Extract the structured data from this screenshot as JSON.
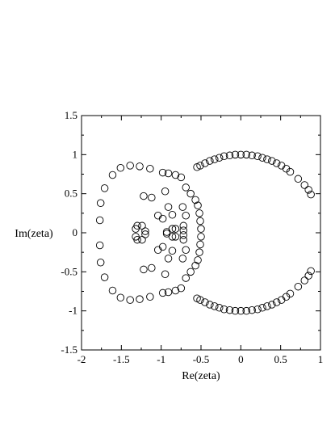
{
  "chart_data": {
    "type": "scatter",
    "title": "",
    "xlabel": "Re(zeta)",
    "ylabel": "Im(zeta)",
    "xlim": [
      -2,
      1
    ],
    "ylim": [
      -1.5,
      1.5
    ],
    "x_ticks": [
      -2,
      -1.5,
      -1,
      -0.5,
      0,
      0.5,
      1
    ],
    "x_tick_labels": [
      "-2",
      "-1.5",
      "-1",
      "-0.5",
      "0",
      "0.5",
      "1"
    ],
    "y_ticks": [
      -1.5,
      -1,
      -0.5,
      0,
      0.5,
      1,
      1.5
    ],
    "y_tick_labels": [
      "-1.5",
      "-1",
      "-0.5",
      "0",
      "0.5",
      "1",
      "1.5"
    ],
    "marker": "open-circle",
    "grid": false,
    "series": [
      {
        "points": [
          [
            -0.55,
            0.84
          ],
          [
            -0.51,
            0.86
          ],
          [
            -0.45,
            0.89
          ],
          [
            -0.39,
            0.92
          ],
          [
            -0.33,
            0.94
          ],
          [
            -0.27,
            0.96
          ],
          [
            -0.21,
            0.98
          ],
          [
            -0.14,
            0.99
          ],
          [
            -0.07,
            1.0
          ],
          [
            0.0,
            1.0
          ],
          [
            0.07,
            1.0
          ],
          [
            0.14,
            0.99
          ],
          [
            0.21,
            0.98
          ],
          [
            0.27,
            0.96
          ],
          [
            0.33,
            0.94
          ],
          [
            0.39,
            0.92
          ],
          [
            0.45,
            0.89
          ],
          [
            0.51,
            0.86
          ],
          [
            0.57,
            0.82
          ],
          [
            0.62,
            0.78
          ],
          [
            0.72,
            0.69
          ],
          [
            0.8,
            0.61
          ],
          [
            0.85,
            0.55
          ],
          [
            0.88,
            0.49
          ],
          [
            -0.55,
            -0.84
          ],
          [
            -0.51,
            -0.86
          ],
          [
            -0.45,
            -0.89
          ],
          [
            -0.39,
            -0.92
          ],
          [
            -0.33,
            -0.94
          ],
          [
            -0.27,
            -0.96
          ],
          [
            -0.21,
            -0.98
          ],
          [
            -0.14,
            -0.99
          ],
          [
            -0.07,
            -1.0
          ],
          [
            0.0,
            -1.0
          ],
          [
            0.07,
            -1.0
          ],
          [
            0.14,
            -0.99
          ],
          [
            0.21,
            -0.98
          ],
          [
            0.27,
            -0.96
          ],
          [
            0.33,
            -0.94
          ],
          [
            0.39,
            -0.92
          ],
          [
            0.45,
            -0.89
          ],
          [
            0.51,
            -0.86
          ],
          [
            0.57,
            -0.82
          ],
          [
            0.62,
            -0.78
          ],
          [
            0.72,
            -0.69
          ],
          [
            0.8,
            -0.61
          ],
          [
            0.85,
            -0.55
          ],
          [
            0.88,
            -0.49
          ],
          [
            -1.76,
            0.38
          ],
          [
            -1.77,
            0.16
          ],
          [
            -1.77,
            -0.16
          ],
          [
            -1.76,
            -0.38
          ],
          [
            -1.71,
            0.57
          ],
          [
            -1.61,
            0.74
          ],
          [
            -1.51,
            0.83
          ],
          [
            -1.39,
            0.86
          ],
          [
            -1.27,
            0.85
          ],
          [
            -1.14,
            0.82
          ],
          [
            -1.71,
            -0.57
          ],
          [
            -1.61,
            -0.74
          ],
          [
            -1.51,
            -0.83
          ],
          [
            -1.39,
            -0.86
          ],
          [
            -1.27,
            -0.85
          ],
          [
            -1.14,
            -0.82
          ],
          [
            -0.98,
            0.77
          ],
          [
            -0.91,
            0.76
          ],
          [
            -0.82,
            0.74
          ],
          [
            -0.75,
            0.71
          ],
          [
            -0.69,
            0.58
          ],
          [
            -0.63,
            0.5
          ],
          [
            -0.98,
            -0.77
          ],
          [
            -0.91,
            -0.76
          ],
          [
            -0.82,
            -0.74
          ],
          [
            -0.75,
            -0.71
          ],
          [
            -0.69,
            -0.58
          ],
          [
            -0.63,
            -0.5
          ],
          [
            -0.57,
            0.42
          ],
          [
            -0.54,
            0.35
          ],
          [
            -0.52,
            0.25
          ],
          [
            -0.51,
            0.15
          ],
          [
            -0.5,
            0.05
          ],
          [
            -0.57,
            -0.42
          ],
          [
            -0.54,
            -0.35
          ],
          [
            -0.52,
            -0.25
          ],
          [
            -0.51,
            -0.15
          ],
          [
            -0.5,
            -0.05
          ],
          [
            -1.22,
            0.47
          ],
          [
            -1.12,
            0.45
          ],
          [
            -0.95,
            0.53
          ],
          [
            -1.22,
            -0.47
          ],
          [
            -1.12,
            -0.45
          ],
          [
            -0.95,
            -0.53
          ],
          [
            -0.91,
            0.33
          ],
          [
            -0.86,
            0.23
          ],
          [
            -0.91,
            -0.33
          ],
          [
            -0.86,
            -0.23
          ],
          [
            -1.32,
            0.05
          ],
          [
            -1.3,
            0.09
          ],
          [
            -1.24,
            0.09
          ],
          [
            -1.32,
            -0.05
          ],
          [
            -1.3,
            -0.09
          ],
          [
            -1.24,
            -0.09
          ],
          [
            -0.73,
            0.33
          ],
          [
            -0.69,
            0.22
          ],
          [
            -0.73,
            -0.33
          ],
          [
            -0.69,
            -0.22
          ],
          [
            -1.04,
            0.22
          ],
          [
            -0.98,
            0.18
          ],
          [
            -1.04,
            -0.22
          ],
          [
            -0.98,
            -0.18
          ],
          [
            -0.86,
            0.05
          ],
          [
            -0.82,
            0.05
          ],
          [
            -0.86,
            -0.05
          ],
          [
            -0.82,
            -0.05
          ],
          [
            -0.72,
            0.09
          ],
          [
            -0.72,
            0.03
          ],
          [
            -0.72,
            -0.03
          ],
          [
            -0.72,
            -0.09
          ],
          [
            -1.2,
            0.02
          ],
          [
            -1.2,
            -0.02
          ],
          [
            -0.93,
            0.01
          ],
          [
            -0.93,
            -0.01
          ]
        ]
      }
    ]
  }
}
